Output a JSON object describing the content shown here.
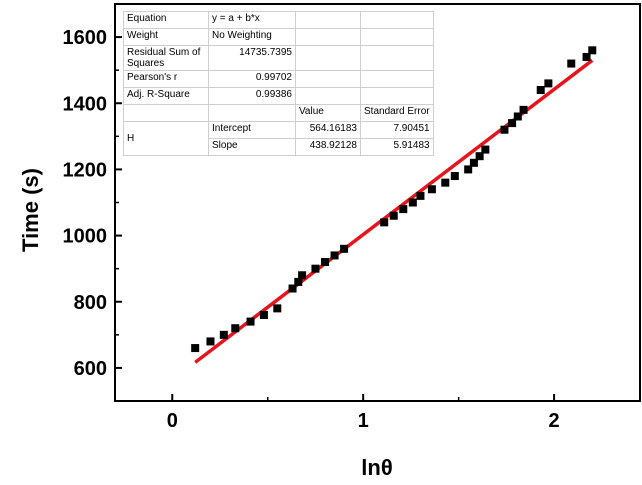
{
  "chart_data": {
    "type": "scatter",
    "xlabel": "lnθ",
    "ylabel": "Time (s)",
    "xlim": [
      -0.3,
      2.45
    ],
    "ylim": [
      500,
      1700
    ],
    "x_ticks": [
      0,
      1,
      2
    ],
    "y_ticks": [
      600,
      800,
      1000,
      1200,
      1400,
      1600
    ],
    "grid": false,
    "series": [
      {
        "type": "scatter",
        "color": "#000000",
        "marker": "square",
        "x": [
          0.12,
          0.2,
          0.27,
          0.33,
          0.41,
          0.48,
          0.55,
          0.63,
          0.66,
          0.68,
          0.75,
          0.8,
          0.85,
          0.9,
          1.11,
          1.16,
          1.21,
          1.26,
          1.3,
          1.36,
          1.43,
          1.48,
          1.55,
          1.58,
          1.61,
          1.64,
          1.74,
          1.78,
          1.81,
          1.84,
          1.93,
          1.97,
          2.09,
          2.17,
          2.2
        ],
        "y": [
          660,
          680,
          700,
          720,
          740,
          760,
          780,
          840,
          860,
          880,
          900,
          920,
          940,
          960,
          1040,
          1060,
          1080,
          1100,
          1120,
          1140,
          1160,
          1180,
          1200,
          1220,
          1240,
          1260,
          1320,
          1340,
          1360,
          1380,
          1440,
          1460,
          1520,
          1540,
          1560
        ]
      },
      {
        "type": "line",
        "color": "#e8141c",
        "x": [
          0.12,
          2.2
        ],
        "y": [
          616.8,
          1529.8
        ]
      }
    ],
    "fit_table": {
      "rows": [
        {
          "label": "Equation",
          "value": "y = a + b*x"
        },
        {
          "label": "Weight",
          "value": "No Weighting"
        },
        {
          "label": "Residual Sum of Squares",
          "value": "14735.7395"
        },
        {
          "label": "Pearson's r",
          "value": "0.99702"
        },
        {
          "label": "Adj. R-Square",
          "value": "0.99386"
        }
      ],
      "header": {
        "value": "Value",
        "error": "Standard Error"
      },
      "param_group": "H",
      "params": [
        {
          "name": "Intercept",
          "value": "564.16183",
          "error": "7.90451"
        },
        {
          "name": "Slope",
          "value": "438.92128",
          "error": "5.91483"
        }
      ]
    }
  }
}
